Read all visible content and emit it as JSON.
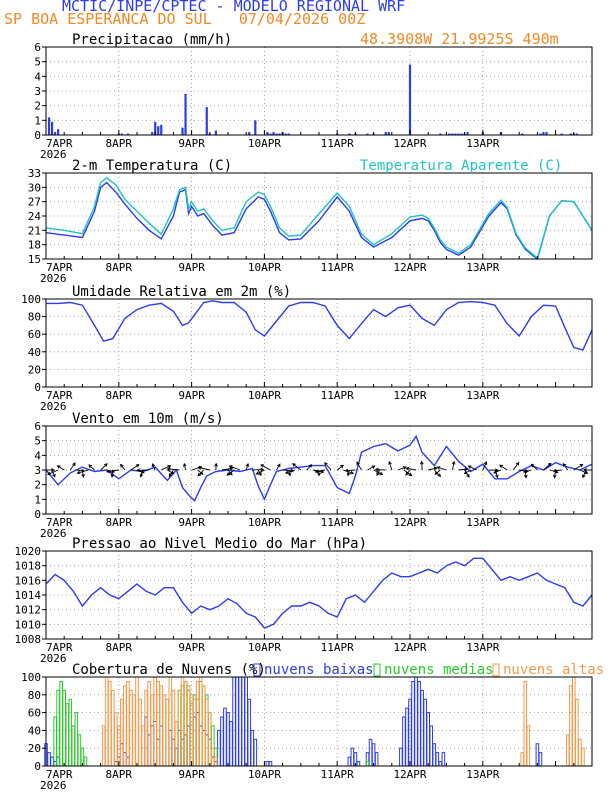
{
  "header": {
    "line1": "MCTIC/INPE/CPTEC - MODELO REGIONAL WRF",
    "line2_left": "SP BOA ESPERANCA DO SUL",
    "line2_right": "07/04/2026 00Z",
    "line3": "48.3908W 21.9925S 490m"
  },
  "colors": {
    "blue": "#2c3cf0",
    "cyan": "#20c4c4",
    "green": "#28cc28",
    "orange": "#f59a4a",
    "black": "#000000",
    "grid": "#909090"
  },
  "chart_data": [
    {
      "id": "precip",
      "type": "bar",
      "title": "Precipitacao (mm/h)",
      "xlabels": [
        "7APR",
        "8APR",
        "9APR",
        "10APR",
        "11APR",
        "12APR",
        "13APR"
      ],
      "year_label": "2026",
      "ylim": [
        0,
        6
      ],
      "yticks": [
        0,
        1,
        2,
        3,
        4,
        5,
        6
      ],
      "grid": true,
      "x_hours": [
        1,
        2,
        3,
        4,
        24,
        25,
        27,
        35,
        36,
        37,
        38,
        45,
        46,
        53,
        54,
        56,
        67,
        69,
        73,
        74,
        75,
        76,
        77,
        78,
        79,
        80,
        96,
        100,
        102,
        106,
        108,
        112,
        113,
        120,
        130,
        133,
        134,
        135,
        136,
        137,
        138,
        139,
        144,
        150,
        157,
        163,
        164,
        165,
        170,
        173,
        174,
        175
      ],
      "values": [
        1.2,
        0.9,
        0.2,
        0.4,
        0.1,
        0.1,
        0.1,
        0.2,
        0.9,
        0.6,
        0.7,
        0.5,
        2.8,
        1.9,
        0.1,
        0.3,
        0.2,
        1.0,
        0.2,
        0.1,
        0.2,
        0.1,
        0.1,
        0.2,
        0.1,
        0.1,
        0.1,
        0.1,
        0.1,
        0.1,
        0.1,
        0.2,
        0.2,
        4.8,
        0.1,
        0.1,
        0.1,
        0.1,
        0.1,
        0.1,
        0.1,
        0.2,
        0.2,
        0.2,
        0.1,
        0.1,
        0.2,
        0.2,
        0.1,
        0.1,
        0.1,
        0.1
      ]
    },
    {
      "id": "temp",
      "type": "line",
      "title": "2-m Temperatura (C)",
      "xlabels": [
        "7APR",
        "8APR",
        "9APR",
        "10APR",
        "11APR",
        "12APR",
        "13APR"
      ],
      "year_label": "2026",
      "ylim": [
        15,
        33
      ],
      "yticks": [
        15,
        18,
        21,
        24,
        27,
        30,
        33
      ],
      "grid": true,
      "series": [
        {
          "name": "",
          "color_key": "blue",
          "x_hours": [
            0,
            6,
            12,
            16,
            18,
            20,
            23,
            26,
            30,
            34,
            38,
            42,
            44,
            46,
            47,
            48,
            50,
            52,
            55,
            58,
            62,
            66,
            70,
            72,
            74,
            77,
            80,
            84,
            90,
            96,
            100,
            104,
            108,
            114,
            120,
            124,
            126,
            128,
            130,
            132,
            136,
            140,
            146,
            150,
            152,
            155,
            158,
            162,
            166,
            170,
            174,
            180
          ],
          "values": [
            20.5,
            20.0,
            19.5,
            25.0,
            30.0,
            31.0,
            29.0,
            26.5,
            23.5,
            21.0,
            19.2,
            24.0,
            29.0,
            29.5,
            24.5,
            26.0,
            24.0,
            24.5,
            22.0,
            20.0,
            20.5,
            25.5,
            28.0,
            27.5,
            25.0,
            20.5,
            19.0,
            19.2,
            23.0,
            28.0,
            25.0,
            19.5,
            17.5,
            19.5,
            23.0,
            23.5,
            23.0,
            21.0,
            18.5,
            17.0,
            15.8,
            17.5,
            24.0,
            26.8,
            25.5,
            20.0,
            17.0,
            15.0,
            24.0,
            27.2,
            27.0,
            21.0
          ]
        },
        {
          "name": "Temperatura Aparente (C)",
          "color_key": "cyan",
          "x_hours": [
            0,
            6,
            12,
            16,
            18,
            20,
            23,
            26,
            30,
            34,
            38,
            42,
            44,
            46,
            47,
            48,
            50,
            52,
            55,
            58,
            62,
            66,
            70,
            72,
            74,
            77,
            80,
            84,
            90,
            96,
            100,
            104,
            108,
            114,
            120,
            124,
            126,
            128,
            130,
            132,
            136,
            140,
            146,
            150,
            152,
            155,
            158,
            162,
            166,
            170,
            174,
            180
          ],
          "values": [
            21.5,
            21.0,
            20.3,
            26.0,
            31.0,
            32.0,
            30.5,
            27.5,
            25.0,
            22.5,
            20.2,
            25.5,
            29.5,
            30.0,
            25.5,
            27.0,
            25.0,
            25.5,
            23.0,
            21.0,
            21.5,
            27.0,
            29.0,
            28.5,
            26.0,
            21.5,
            19.8,
            20.0,
            24.5,
            28.8,
            26.0,
            20.2,
            18.0,
            20.3,
            23.8,
            24.2,
            23.5,
            21.5,
            19.0,
            17.5,
            16.2,
            18.0,
            24.5,
            27.3,
            25.8,
            20.3,
            17.3,
            15.2,
            24.0,
            27.2,
            27.0,
            21.0
          ]
        }
      ]
    },
    {
      "id": "rh",
      "type": "line",
      "title": "Umidade Relativa em 2m (%)",
      "xlabels": [
        "7APR",
        "8APR",
        "9APR",
        "10APR",
        "11APR",
        "12APR",
        "13APR"
      ],
      "year_label": "2026",
      "ylim": [
        0,
        100
      ],
      "yticks": [
        0,
        20,
        40,
        60,
        80,
        100
      ],
      "grid": true,
      "series": [
        {
          "name": "",
          "color_key": "blue",
          "x_hours": [
            0,
            4,
            8,
            12,
            16,
            19,
            22,
            26,
            30,
            34,
            38,
            42,
            45,
            47,
            49,
            52,
            55,
            58,
            62,
            66,
            69,
            72,
            76,
            80,
            84,
            88,
            92,
            96,
            100,
            104,
            108,
            112,
            116,
            120,
            124,
            128,
            132,
            136,
            140,
            144,
            148,
            152,
            156,
            160,
            164,
            168,
            171,
            174,
            177,
            180
          ],
          "values": [
            95,
            95,
            96,
            93,
            70,
            52,
            55,
            78,
            88,
            93,
            95,
            86,
            70,
            73,
            82,
            96,
            98,
            96,
            96,
            85,
            65,
            58,
            75,
            92,
            96,
            96,
            92,
            70,
            55,
            72,
            88,
            80,
            90,
            93,
            78,
            70,
            88,
            96,
            97,
            96,
            93,
            72,
            58,
            80,
            93,
            92,
            68,
            45,
            42,
            65
          ]
        }
      ]
    },
    {
      "id": "wind",
      "type": "line",
      "title": "Vento em 10m (m/s)",
      "xlabels": [
        "7APR",
        "8APR",
        "9APR",
        "10APR",
        "11APR",
        "12APR",
        "13APR"
      ],
      "year_label": "2026",
      "ylim": [
        0,
        6
      ],
      "yticks": [
        0,
        1,
        2,
        3,
        4,
        5,
        6
      ],
      "grid": true,
      "series": [
        {
          "name": "",
          "color_key": "blue",
          "x_hours": [
            0,
            4,
            8,
            12,
            16,
            20,
            24,
            28,
            32,
            36,
            40,
            43,
            45,
            47,
            49,
            51,
            53,
            56,
            60,
            64,
            68,
            70,
            72,
            74,
            76,
            80,
            84,
            88,
            92,
            96,
            100,
            102,
            104,
            108,
            112,
            116,
            120,
            122,
            124,
            128,
            132,
            136,
            140,
            144,
            148,
            152,
            156,
            160,
            164,
            168,
            172,
            176,
            180
          ],
          "values": [
            3.0,
            2.0,
            2.8,
            3.2,
            2.9,
            3.0,
            2.4,
            3.0,
            2.9,
            3.2,
            2.3,
            3.0,
            1.8,
            1.3,
            0.9,
            1.8,
            2.6,
            2.9,
            3.0,
            2.9,
            3.1,
            1.9,
            1.0,
            2.0,
            2.9,
            3.1,
            3.2,
            3.3,
            3.3,
            1.8,
            1.4,
            2.6,
            4.2,
            4.6,
            4.8,
            4.3,
            4.7,
            5.3,
            4.2,
            3.3,
            4.6,
            3.6,
            2.9,
            3.4,
            2.4,
            2.4,
            2.9,
            3.3,
            3.0,
            3.5,
            3.2,
            3.0,
            3.4
          ]
        }
      ]
    },
    {
      "id": "pres",
      "type": "line",
      "title": "Pressao ao Nivel Medio do Mar (hPa)",
      "xlabels": [
        "7APR",
        "8APR",
        "9APR",
        "10APR",
        "11APR",
        "12APR",
        "13APR"
      ],
      "year_label": "2026",
      "ylim": [
        1008,
        1020
      ],
      "yticks": [
        1008,
        1010,
        1012,
        1014,
        1016,
        1018,
        1020
      ],
      "grid": true,
      "series": [
        {
          "name": "",
          "color_key": "blue",
          "x_hours": [
            0,
            3,
            6,
            9,
            12,
            15,
            18,
            21,
            24,
            27,
            30,
            33,
            36,
            39,
            42,
            45,
            48,
            51,
            54,
            57,
            60,
            63,
            66,
            69,
            72,
            75,
            78,
            81,
            84,
            87,
            90,
            93,
            96,
            99,
            102,
            105,
            108,
            111,
            114,
            117,
            120,
            123,
            126,
            129,
            132,
            135,
            138,
            141,
            144,
            147,
            150,
            153,
            156,
            159,
            162,
            165,
            168,
            171,
            174,
            177,
            180
          ],
          "values": [
            1015.5,
            1016.8,
            1016.0,
            1014.5,
            1012.5,
            1014.0,
            1015.0,
            1014.0,
            1013.5,
            1014.5,
            1015.5,
            1014.5,
            1014.0,
            1015.0,
            1015.0,
            1013.0,
            1011.5,
            1012.5,
            1012.0,
            1012.5,
            1013.5,
            1012.8,
            1011.5,
            1011.0,
            1009.5,
            1010.0,
            1011.5,
            1012.5,
            1012.5,
            1013.0,
            1012.5,
            1011.5,
            1011.0,
            1013.5,
            1014.0,
            1013.0,
            1014.5,
            1016.0,
            1017.0,
            1016.5,
            1016.5,
            1017.0,
            1017.5,
            1017.0,
            1018.0,
            1018.5,
            1018.0,
            1019.0,
            1019.0,
            1017.5,
            1016.0,
            1016.5,
            1016.0,
            1016.5,
            1017.0,
            1016.0,
            1015.5,
            1015.0,
            1013.0,
            1012.5,
            1014.0
          ]
        }
      ]
    },
    {
      "id": "clouds",
      "type": "bar",
      "title": "Cobertura de Nuvens (%)",
      "xlabels": [
        "7APR",
        "8APR",
        "9APR",
        "10APR",
        "11APR",
        "12APR",
        "13APR"
      ],
      "year_label": "2026",
      "ylim": [
        0,
        100
      ],
      "yticks": [
        0,
        20,
        40,
        60,
        80,
        100
      ],
      "grid": true,
      "series": [
        {
          "name": "nuvens baixas",
          "color_key": "blue",
          "x_hours": [
            0,
            1,
            2,
            3,
            4,
            23,
            24,
            25,
            26,
            27,
            33,
            34,
            35,
            36,
            37,
            38,
            41,
            42,
            43,
            44,
            45,
            46,
            47,
            49,
            50,
            51,
            52,
            53,
            54,
            55,
            56,
            57,
            58,
            59,
            60,
            61,
            62,
            63,
            64,
            65,
            66,
            67,
            68,
            69,
            73,
            74,
            100,
            101,
            102,
            103,
            106,
            107,
            108,
            109,
            117,
            118,
            119,
            120,
            121,
            122,
            123,
            124,
            125,
            126,
            127,
            128,
            129,
            130,
            131,
            162,
            163
          ],
          "values": [
            25,
            15,
            10,
            5,
            10,
            5,
            10,
            25,
            15,
            10,
            55,
            35,
            45,
            50,
            30,
            45,
            40,
            30,
            20,
            40,
            30,
            35,
            45,
            55,
            60,
            45,
            40,
            35,
            30,
            10,
            5,
            40,
            55,
            65,
            60,
            50,
            100,
            100,
            100,
            100,
            100,
            75,
            40,
            30,
            5,
            5,
            10,
            20,
            15,
            5,
            15,
            30,
            25,
            15,
            20,
            55,
            65,
            75,
            95,
            100,
            95,
            85,
            75,
            60,
            45,
            25,
            15,
            5,
            15,
            25,
            15
          ]
        },
        {
          "name": "nuvens medias",
          "color_key": "green",
          "x_hours": [
            3,
            4,
            5,
            6,
            7,
            8,
            9,
            10,
            11,
            12,
            13,
            44,
            45,
            46,
            47,
            48,
            49,
            50,
            51,
            52,
            53,
            54,
            55,
            56,
            106
          ],
          "values": [
            55,
            85,
            95,
            85,
            70,
            75,
            45,
            60,
            35,
            20,
            10,
            85,
            90,
            95,
            85,
            70,
            80,
            75,
            95,
            90,
            80,
            60,
            45,
            20,
            5
          ]
        },
        {
          "name": "nuvens altas",
          "color_key": "orange",
          "x_hours": [
            19,
            20,
            21,
            22,
            23,
            24,
            25,
            26,
            27,
            28,
            29,
            30,
            31,
            32,
            33,
            34,
            35,
            36,
            37,
            38,
            39,
            40,
            41,
            42,
            43,
            44,
            45,
            46,
            47,
            48,
            49,
            50,
            51,
            52,
            53,
            54,
            55,
            56,
            157,
            158,
            159,
            172,
            173,
            174,
            175,
            176,
            177
          ],
          "values": [
            45,
            100,
            95,
            85,
            60,
            45,
            75,
            90,
            95,
            85,
            80,
            100,
            75,
            45,
            85,
            95,
            80,
            100,
            95,
            90,
            80,
            75,
            100,
            85,
            50,
            85,
            100,
            95,
            90,
            80,
            75,
            95,
            100,
            90,
            75,
            60,
            20,
            10,
            15,
            95,
            45,
            35,
            90,
            100,
            75,
            30,
            20
          ]
        }
      ]
    }
  ]
}
